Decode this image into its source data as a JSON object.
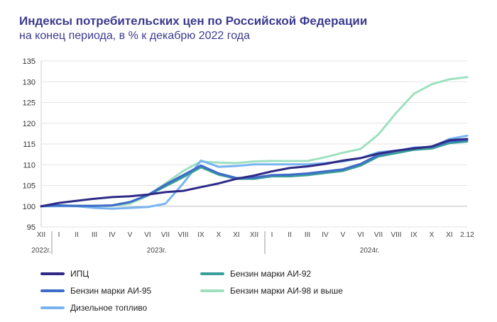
{
  "header": {
    "title": "Индексы потребительских цен по Российской Федерации",
    "subtitle": "на конец периода, в % к декабрю 2022 года"
  },
  "chart_data": {
    "type": "line",
    "title": "Индексы потребительских цен по Российской Федерации",
    "subtitle": "на конец периода, в % к декабрю 2022 года",
    "ylim": [
      95,
      135
    ],
    "yticks": [
      95,
      100,
      105,
      110,
      115,
      120,
      125,
      130,
      135
    ],
    "x": [
      "XII",
      "I",
      "II",
      "III",
      "IV",
      "V",
      "VI",
      "VII",
      "VIII",
      "IX",
      "X",
      "XI",
      "XII",
      "I",
      "II",
      "III",
      "IV",
      "V",
      "VI",
      "VII",
      "VIII",
      "IX",
      "X",
      "XI",
      "2.12"
    ],
    "year_labels": [
      {
        "label": "2022г.",
        "index": 0
      },
      {
        "label": "2023г.",
        "index": 6.5
      },
      {
        "label": "2024г.",
        "index": 18.5
      }
    ],
    "grid": "horizontal",
    "series": [
      {
        "name": "ИПЦ",
        "color": "#2e2a86",
        "width": 3,
        "values": [
          100,
          100.8,
          101.3,
          101.8,
          102.2,
          102.4,
          102.8,
          103.4,
          103.7,
          104.6,
          105.5,
          106.6,
          107.4,
          108.4,
          109.2,
          109.6,
          110.2,
          111.0,
          111.6,
          112.7,
          113.4,
          113.9,
          114.4,
          115.9,
          116.2
        ]
      },
      {
        "name": "Бензин марки АИ-92",
        "color": "#3a9e9a",
        "width": 3,
        "values": [
          100,
          100.2,
          100.1,
          100.1,
          100.2,
          101.0,
          102.6,
          104.8,
          107.0,
          109.4,
          107.6,
          106.6,
          106.6,
          107.2,
          107.2,
          107.5,
          108.0,
          108.5,
          109.8,
          112.0,
          112.8,
          113.6,
          113.9,
          115.2,
          115.6
        ]
      },
      {
        "name": "Бензин марки АИ-95",
        "color": "#3e6cc9",
        "width": 3,
        "values": [
          100,
          100.2,
          100.1,
          100.1,
          100.2,
          101.0,
          102.7,
          105.2,
          107.5,
          109.8,
          107.9,
          106.8,
          106.9,
          107.5,
          107.6,
          107.9,
          108.4,
          108.9,
          110.2,
          112.4,
          113.3,
          114.1,
          114.3,
          115.6,
          116.0
        ]
      },
      {
        "name": "Бензин марки АИ-98  и  выше",
        "color": "#9fe0c0",
        "width": 3,
        "values": [
          100,
          100.1,
          100.1,
          100.1,
          100.1,
          100.6,
          102.5,
          105.5,
          108.5,
          110.8,
          110.5,
          110.4,
          110.8,
          110.9,
          110.9,
          110.9,
          111.8,
          112.9,
          113.8,
          117.3,
          122.5,
          127.1,
          129.4,
          130.6,
          131.1
        ]
      },
      {
        "name": "Дизельное топливо",
        "color": "#79b4f1",
        "width": 3,
        "values": [
          100,
          100.0,
          100.0,
          99.6,
          99.4,
          99.6,
          99.8,
          100.6,
          105.5,
          111.0,
          109.5,
          109.7,
          110.1,
          110.1,
          110.1,
          110.1,
          110.4,
          110.8,
          111.6,
          113.0,
          113.4,
          113.7,
          114.3,
          116.2,
          117.0
        ]
      }
    ]
  }
}
